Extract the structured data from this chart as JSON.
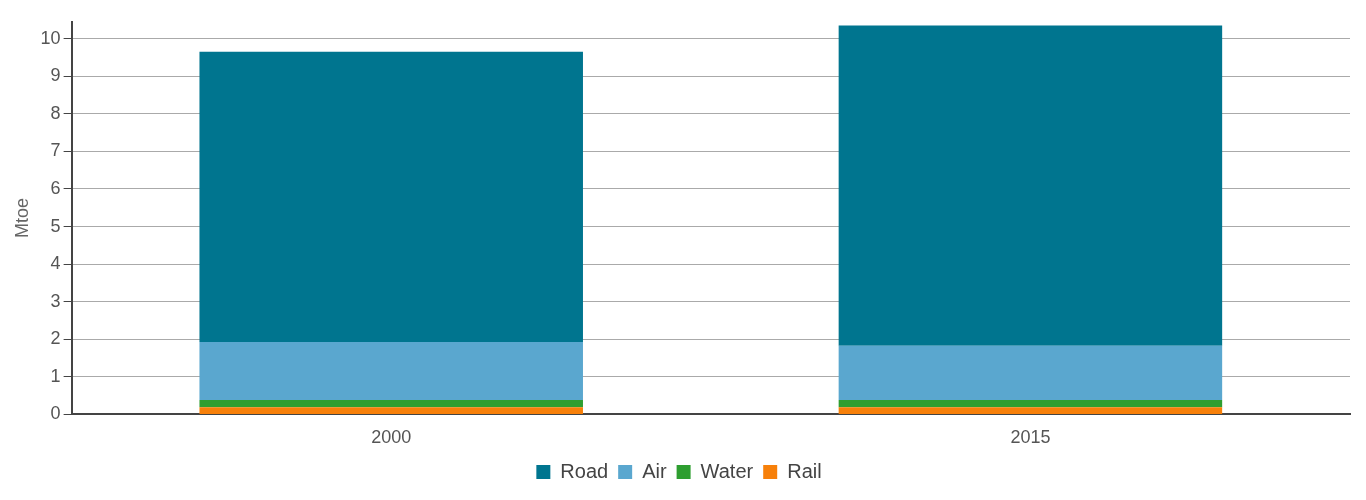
{
  "chart_data": {
    "type": "bar",
    "stacked": true,
    "ylabel": "Mtoe",
    "categories": [
      "2000",
      "2015"
    ],
    "series": [
      {
        "name": "Rail",
        "color": "#f7800a",
        "values": [
          0.19,
          0.19
        ]
      },
      {
        "name": "Water",
        "color": "#2e9e30",
        "values": [
          0.19,
          0.19
        ]
      },
      {
        "name": "Air",
        "color": "#5aa7cf",
        "values": [
          1.55,
          1.45
        ]
      },
      {
        "name": "Road",
        "color": "#00758f",
        "values": [
          7.72,
          8.52
        ]
      }
    ],
    "ylim": [
      0,
      10.45
    ],
    "yticks": [
      0,
      1,
      2,
      3,
      4,
      5,
      6,
      7,
      8,
      9,
      10
    ],
    "grid": "y",
    "legend": "bottom"
  }
}
